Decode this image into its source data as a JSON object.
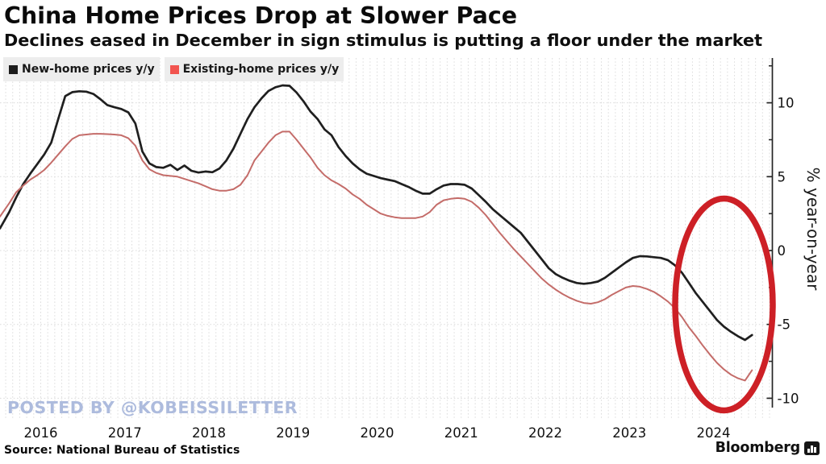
{
  "header": {
    "title": "China Home Prices Drop at Slower Pace",
    "subtitle": "Declines eased in December in sign stimulus is putting a floor under the market"
  },
  "legend": {
    "items": [
      {
        "label": "New-home prices y/y",
        "color": "#1c1c1c"
      },
      {
        "label": "Existing-home prices y/y",
        "color": "#f2544f"
      }
    ]
  },
  "watermark": "POSTED BY @KOBEISSILETTER",
  "source": "Source: National Bureau of Statistics",
  "brand": "Bloomberg",
  "brand_icon": "bar-chart-icon",
  "colors": {
    "new_home_line": "#1f1f1f",
    "existing_home_line": "#c46c69",
    "grid": "#dcdcdc",
    "axis": "#252525",
    "annotation": "#cd2026",
    "watermark": "#adbbdd"
  },
  "chart_data": {
    "type": "line",
    "title": "China Home Prices Drop at Slower Pace",
    "xlabel": "",
    "ylabel": "% year-on-year",
    "x_start_year": 2016,
    "x_interval": "monthly",
    "x_tick_labels": [
      "2016",
      "2017",
      "2018",
      "2019",
      "2020",
      "2021",
      "2022",
      "2023",
      "2024"
    ],
    "y_ticks": [
      10,
      5,
      0,
      -5,
      -10
    ],
    "y_minor_ticks": [
      12.5,
      7.5,
      2.5,
      -2.5,
      -7.5
    ],
    "ylim": [
      -12,
      13
    ],
    "grid": "dotted",
    "legend_position": "top-left",
    "series": [
      {
        "name": "New-home prices y/y",
        "values": [
          1.5,
          2.6,
          3.6,
          4.5,
          5.2,
          5.85,
          6.5,
          7.3,
          8.9,
          10.45,
          10.72,
          10.78,
          10.75,
          10.6,
          10.25,
          9.85,
          9.7,
          9.58,
          9.35,
          8.6,
          6.7,
          5.9,
          5.65,
          5.6,
          5.8,
          5.45,
          5.75,
          5.4,
          5.28,
          5.35,
          5.3,
          5.55,
          6.1,
          6.9,
          7.9,
          8.9,
          9.7,
          10.3,
          10.8,
          11.05,
          11.18,
          11.15,
          10.7,
          10.1,
          9.4,
          8.9,
          8.2,
          7.8,
          7.0,
          6.4,
          5.9,
          5.5,
          5.2,
          5.05,
          4.9,
          4.8,
          4.7,
          4.5,
          4.3,
          4.05,
          3.85,
          3.85,
          4.15,
          4.4,
          4.5,
          4.5,
          4.45,
          4.2,
          3.75,
          3.3,
          2.8,
          2.4,
          2.0,
          1.6,
          1.2,
          0.6,
          0.0,
          -0.6,
          -1.2,
          -1.6,
          -1.85,
          -2.05,
          -2.2,
          -2.25,
          -2.2,
          -2.1,
          -1.85,
          -1.5,
          -1.15,
          -0.8,
          -0.5,
          -0.38,
          -0.4,
          -0.45,
          -0.5,
          -0.65,
          -1.0,
          -1.5,
          -2.2,
          -2.9,
          -3.5,
          -4.1,
          -4.7,
          -5.15,
          -5.5,
          -5.8,
          -6.05,
          -5.72
        ]
      },
      {
        "name": "Existing-home prices y/y",
        "values": [
          2.3,
          3.2,
          3.95,
          4.4,
          4.8,
          5.1,
          5.45,
          5.95,
          6.5,
          7.05,
          7.55,
          7.8,
          7.85,
          7.9,
          7.9,
          7.88,
          7.85,
          7.8,
          7.6,
          7.1,
          6.1,
          5.5,
          5.25,
          5.1,
          5.05,
          5.0,
          4.85,
          4.7,
          4.55,
          4.35,
          4.15,
          4.05,
          4.05,
          4.15,
          4.45,
          5.1,
          6.1,
          6.7,
          7.3,
          7.8,
          8.05,
          8.05,
          7.5,
          6.9,
          6.3,
          5.6,
          5.1,
          4.75,
          4.5,
          4.2,
          3.8,
          3.5,
          3.1,
          2.8,
          2.5,
          2.35,
          2.25,
          2.2,
          2.2,
          2.2,
          2.3,
          2.6,
          3.1,
          3.4,
          3.5,
          3.55,
          3.5,
          3.3,
          2.9,
          2.4,
          1.8,
          1.2,
          0.65,
          0.1,
          -0.4,
          -0.9,
          -1.4,
          -1.9,
          -2.3,
          -2.65,
          -2.95,
          -3.2,
          -3.4,
          -3.55,
          -3.6,
          -3.5,
          -3.3,
          -3.0,
          -2.75,
          -2.5,
          -2.4,
          -2.45,
          -2.6,
          -2.8,
          -3.1,
          -3.45,
          -3.9,
          -4.5,
          -5.2,
          -5.8,
          -6.45,
          -7.05,
          -7.6,
          -8.05,
          -8.4,
          -8.65,
          -8.8,
          -8.1
        ]
      }
    ],
    "annotation": {
      "shape": "ellipse",
      "meaning": "highlight of 2024 price declines easing",
      "color": "#cd2026"
    }
  }
}
